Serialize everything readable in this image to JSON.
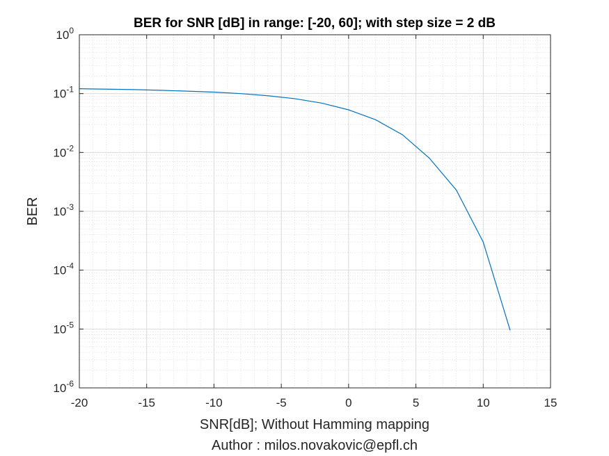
{
  "chart_data": {
    "type": "line",
    "title": "BER for SNR [dB] in range: [-20, 60]; with step size = 2 dB",
    "xlabel": "SNR[dB]; Without Hamming mapping",
    "xlabel2": "Author : milos.novakovic@epfl.ch",
    "ylabel": "BER",
    "xlim": [
      -20,
      15
    ],
    "ylim": [
      1e-06,
      1
    ],
    "yscale": "log",
    "grid": true,
    "minor_grid": true,
    "xticks": [
      -20,
      -15,
      -10,
      -5,
      0,
      5,
      10,
      15
    ],
    "xtick_labels": [
      "-20",
      "-15",
      "-10",
      "-5",
      "0",
      "5",
      "10",
      "15"
    ],
    "ytick_exponents": [
      -6,
      -5,
      -4,
      -3,
      -2,
      -1,
      0
    ],
    "ytick_labels": [
      "10-6",
      "10-5",
      "10-4",
      "10-3",
      "10-2",
      "10-1",
      "100"
    ],
    "series": [
      {
        "color": "#0072bd",
        "x": [
          -20,
          -18,
          -16,
          -14,
          -12,
          -10,
          -8,
          -6,
          -4,
          -2,
          0,
          2,
          4,
          6,
          8,
          10,
          12
        ],
        "y": [
          0.121,
          0.119,
          0.117,
          0.114,
          0.11,
          0.106,
          0.1,
          0.092,
          0.082,
          0.069,
          0.053,
          0.036,
          0.02,
          0.008,
          0.0023,
          0.0003,
          9.5e-06
        ]
      }
    ]
  }
}
